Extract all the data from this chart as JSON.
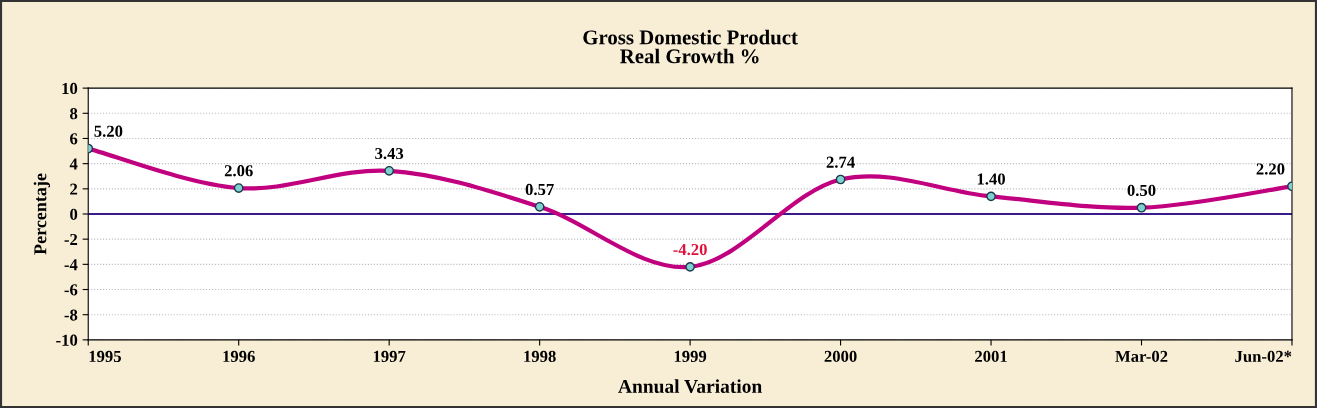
{
  "chart_data": {
    "type": "line",
    "title": "Gross Domestic Product\nReal Growth %",
    "xlabel": "Annual Variation",
    "ylabel": "Percentaje",
    "categories": [
      "1995",
      "1996",
      "1997",
      "1998",
      "1999",
      "2000",
      "2001",
      "Mar-02",
      "Jun-02*"
    ],
    "series": [
      {
        "color": "#c0007f",
        "values": [
          5.2,
          2.06,
          3.43,
          0.57,
          -4.2,
          2.74,
          1.4,
          0.5,
          2.2
        ]
      }
    ],
    "ylim": [
      -10,
      10
    ],
    "yticks": [
      -10,
      -8,
      -6,
      -4,
      -2,
      0,
      2,
      4,
      6,
      8,
      10
    ],
    "ref_lines": [
      {
        "axis": "y",
        "value": 0,
        "color": "#3a1a8c"
      }
    ],
    "value_labels": [
      "5.20",
      "2.06",
      "3.43",
      "0.57",
      "-4.20",
      "2.74",
      "1.40",
      "0.50",
      "2.20"
    ],
    "grid": "y",
    "marker": "circle",
    "line_style": "solid",
    "legend": false
  }
}
